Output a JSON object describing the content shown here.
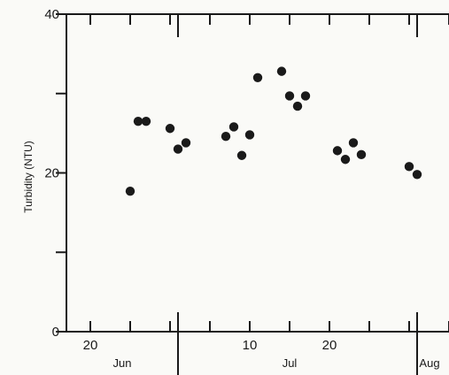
{
  "chart_data": {
    "type": "scatter",
    "title": "",
    "xlabel": "",
    "ylabel": "Turbidity (NTU)",
    "x_axis_kind": "date",
    "xlim": [
      "06-17",
      "08-04"
    ],
    "ylim": [
      0,
      40
    ],
    "grid": false,
    "y_ticks": [
      0,
      10,
      20,
      30,
      40
    ],
    "y_tick_labels": [
      {
        "value": 0,
        "label": "0"
      },
      {
        "value": 20,
        "label": "20"
      },
      {
        "value": 40,
        "label": "40"
      }
    ],
    "x_tick_labels": [
      {
        "date": "06-20",
        "label": "20"
      },
      {
        "date": "07-10",
        "label": "10"
      },
      {
        "date": "07-20",
        "label": "20"
      }
    ],
    "month_labels": [
      {
        "date": "06-24",
        "label": "Jun"
      },
      {
        "date": "07-15",
        "label": "Jul"
      },
      {
        "date": "08-03",
        "label": "Aug"
      }
    ],
    "month_boundaries": [
      "07-01",
      "07-31"
    ],
    "points": [
      {
        "x": "06-25",
        "y": 17.7
      },
      {
        "x": "06-26",
        "y": 26.5
      },
      {
        "x": "06-27",
        "y": 26.5
      },
      {
        "x": "06-30",
        "y": 25.6
      },
      {
        "x": "07-01",
        "y": 23.0
      },
      {
        "x": "07-02",
        "y": 23.8
      },
      {
        "x": "07-07",
        "y": 24.6
      },
      {
        "x": "07-08",
        "y": 25.8
      },
      {
        "x": "07-09",
        "y": 22.2
      },
      {
        "x": "07-10",
        "y": 24.8
      },
      {
        "x": "07-11",
        "y": 32.0
      },
      {
        "x": "07-14",
        "y": 32.8
      },
      {
        "x": "07-15",
        "y": 29.7
      },
      {
        "x": "07-16",
        "y": 28.4
      },
      {
        "x": "07-17",
        "y": 29.7
      },
      {
        "x": "07-21",
        "y": 22.8
      },
      {
        "x": "07-22",
        "y": 21.7
      },
      {
        "x": "07-23",
        "y": 23.8
      },
      {
        "x": "07-24",
        "y": 22.3
      },
      {
        "x": "07-30",
        "y": 20.8
      },
      {
        "x": "07-31",
        "y": 19.8
      }
    ]
  }
}
